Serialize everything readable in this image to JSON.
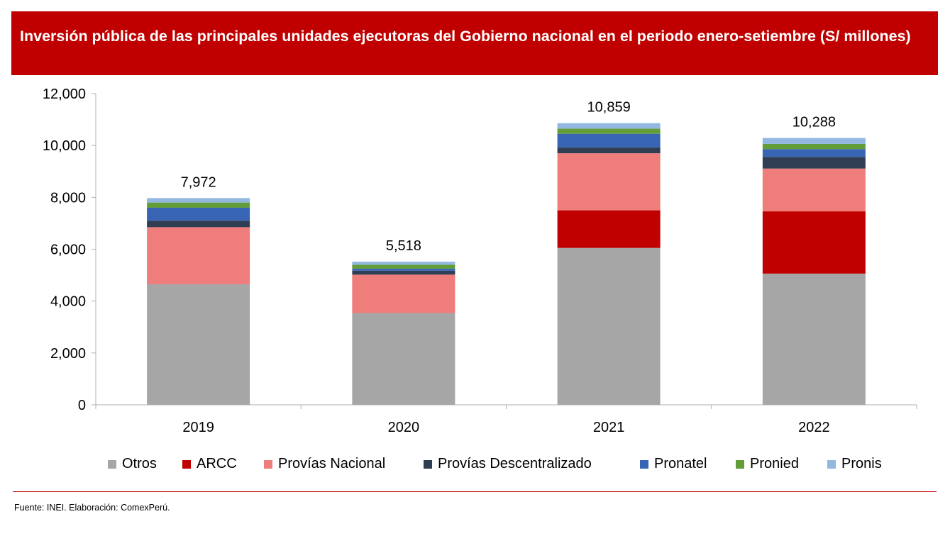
{
  "header": {
    "title": "Inversión pública de las principales unidades ejecutoras del Gobierno nacional en el periodo enero-setiembre (S/ millones)"
  },
  "chart_data": {
    "type": "bar",
    "stacked": true,
    "categories": [
      "2019",
      "2020",
      "2021",
      "2022"
    ],
    "series": [
      {
        "name": "Otros",
        "color": "#a6a6a6",
        "values": [
          4650,
          3540,
          6050,
          5060
        ]
      },
      {
        "name": "ARCC",
        "color": "#c00000",
        "values": [
          0,
          0,
          1450,
          2400
        ]
      },
      {
        "name": "Provías Nacional",
        "color": "#ee7d7b",
        "values": [
          2200,
          1480,
          2200,
          1650
        ]
      },
      {
        "name": "Provías Descentralizado",
        "color": "#2f3e52",
        "values": [
          250,
          150,
          220,
          450
        ]
      },
      {
        "name": "Pronatel",
        "color": "#3864b4",
        "values": [
          500,
          80,
          530,
          300
        ]
      },
      {
        "name": "Pronied",
        "color": "#629d3a",
        "values": [
          200,
          150,
          200,
          200
        ]
      },
      {
        "name": "Pronis",
        "color": "#93b8e0",
        "values": [
          172,
          118,
          209,
          228
        ]
      }
    ],
    "totals": [
      7972,
      5518,
      10859,
      10288
    ],
    "total_labels": [
      "7,972",
      "5,518",
      "10,859",
      "10,288"
    ],
    "ylim": [
      0,
      12000
    ],
    "yticks": [
      0,
      2000,
      4000,
      6000,
      8000,
      10000,
      12000
    ],
    "ytick_labels": [
      "0",
      "2,000",
      "4,000",
      "6,000",
      "8,000",
      "10,000",
      "12,000"
    ],
    "xlabel": "",
    "ylabel": "",
    "grid": false,
    "legend_position": "bottom"
  },
  "footer": {
    "source": "Fuente: INEI. Elaboración: ComexPerú."
  }
}
